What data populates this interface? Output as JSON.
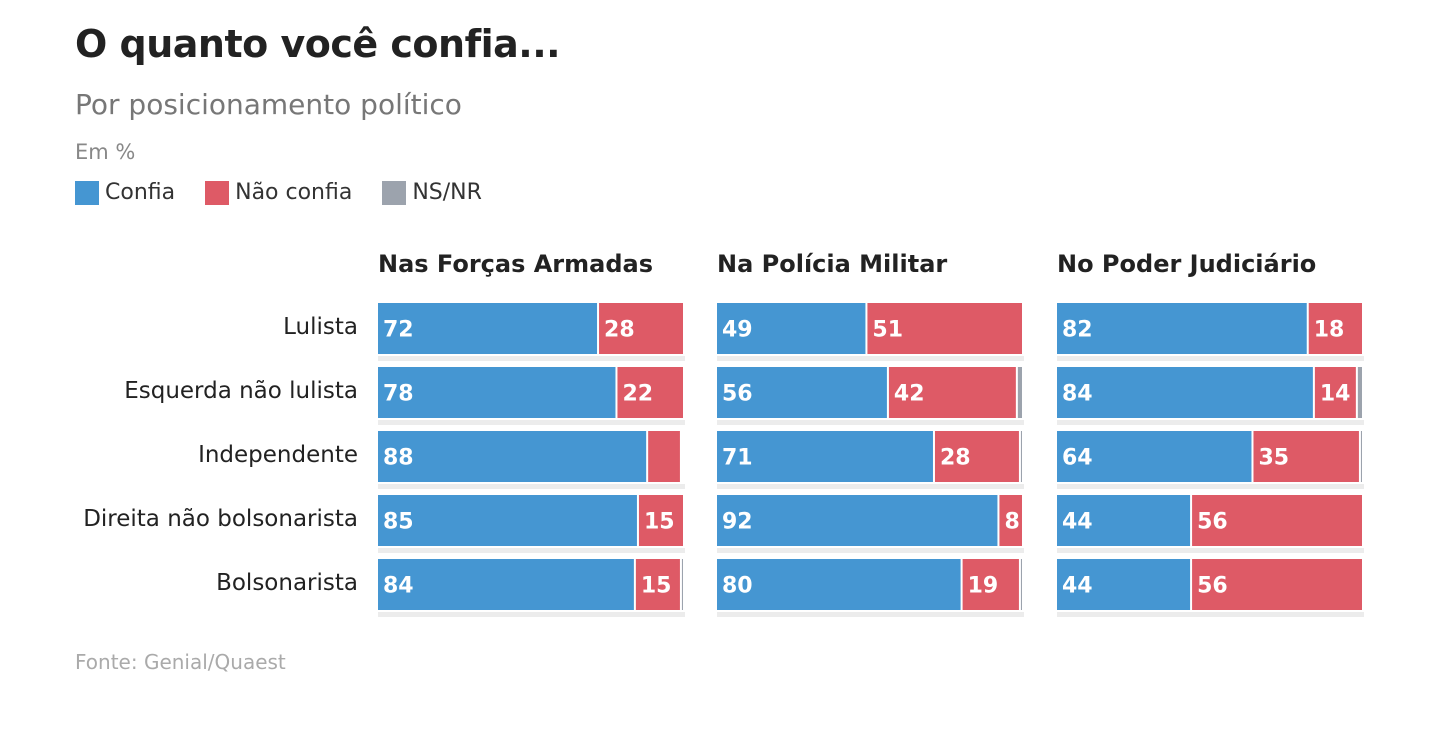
{
  "title": "O quanto você confia...",
  "subtitle": "Por posicionamento político",
  "unit": "Em %",
  "source": "Fonte: Genial/Quaest",
  "legend": [
    {
      "label": "Confia",
      "color": "#4596d2"
    },
    {
      "label": "Não confia",
      "color": "#de5a66"
    },
    {
      "label": "NS/NR",
      "color": "#9ca3ad"
    }
  ],
  "chart_data": {
    "type": "bar",
    "orientation": "horizontal",
    "stacked": true,
    "xlim": [
      0,
      100
    ],
    "categories": [
      "Lulista",
      "Esquerda não lulista",
      "Independente",
      "Direita não bolsonarista",
      "Bolsonarista"
    ],
    "panels": [
      {
        "title": "Nas Forças Armadas",
        "series": [
          {
            "name": "Confia",
            "values": [
              72,
              78,
              88,
              85,
              84
            ],
            "labels": [
              "72",
              "78",
              "88",
              "85",
              "84"
            ]
          },
          {
            "name": "Não confia",
            "values": [
              28,
              22,
              11,
              15,
              15
            ],
            "labels": [
              "28",
              "22",
              null,
              "15",
              "15"
            ]
          },
          {
            "name": "NS/NR",
            "values": [
              0,
              0,
              0,
              0,
              1
            ],
            "labels": [
              null,
              null,
              null,
              null,
              null
            ]
          }
        ]
      },
      {
        "title": "Na Polícia Militar",
        "series": [
          {
            "name": "Confia",
            "values": [
              49,
              56,
              71,
              92,
              80
            ],
            "labels": [
              "49",
              "56",
              "71",
              "92",
              "80"
            ]
          },
          {
            "name": "Não confia",
            "values": [
              51,
              42,
              28,
              8,
              19
            ],
            "labels": [
              "51",
              "42",
              "28",
              "8",
              "19"
            ]
          },
          {
            "name": "NS/NR",
            "values": [
              0,
              2,
              1,
              0,
              1
            ],
            "labels": [
              null,
              null,
              null,
              null,
              null
            ]
          }
        ]
      },
      {
        "title": "No Poder Judiciário",
        "series": [
          {
            "name": "Confia",
            "values": [
              82,
              84,
              64,
              44,
              44
            ],
            "labels": [
              "82",
              "84",
              "64",
              "44",
              "44"
            ]
          },
          {
            "name": "Não confia",
            "values": [
              18,
              14,
              35,
              56,
              56
            ],
            "labels": [
              "18",
              "14",
              "35",
              "56",
              "56"
            ]
          },
          {
            "name": "NS/NR",
            "values": [
              0,
              2,
              1,
              0,
              0
            ],
            "labels": [
              null,
              null,
              null,
              null,
              null
            ]
          }
        ]
      }
    ]
  }
}
